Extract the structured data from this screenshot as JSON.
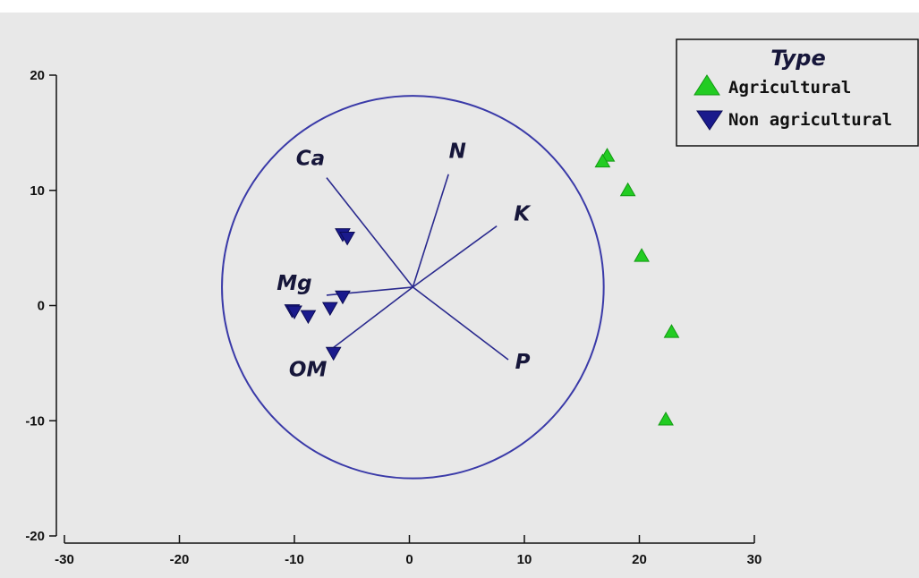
{
  "chart_data": {
    "type": "scatter",
    "title": "",
    "xlabel": "",
    "ylabel": "",
    "xlim": [
      -30,
      30
    ],
    "ylim": [
      -20,
      20
    ],
    "x_ticks": [
      -30,
      -20,
      -10,
      0,
      10,
      20,
      30
    ],
    "y_ticks": [
      -20,
      -10,
      0,
      10,
      20
    ],
    "x_tick_labels": [
      "-30",
      "-20",
      "-10",
      "0",
      "10",
      "20",
      "30"
    ],
    "y_tick_labels": [
      "-20",
      "-10",
      "0",
      "10",
      "20"
    ],
    "grid": false,
    "legend": {
      "title": "Type",
      "position": "top-right",
      "entries": [
        "Agricultural",
        "Non agricultural"
      ]
    },
    "series": [
      {
        "name": "Agricultural",
        "marker": "triangle-up",
        "color": "#22cc22",
        "points": [
          [
            17.2,
            13.0
          ],
          [
            16.8,
            12.5
          ],
          [
            19.0,
            10.0
          ],
          [
            20.2,
            4.3
          ],
          [
            22.8,
            -2.3
          ],
          [
            22.3,
            -9.9
          ]
        ]
      },
      {
        "name": "Non agricultural",
        "marker": "triangle-down",
        "color": "#1a1a8c",
        "points": [
          [
            -5.8,
            6.2
          ],
          [
            -5.4,
            5.9
          ],
          [
            -10.2,
            -0.4
          ],
          [
            -10.0,
            -0.5
          ],
          [
            -8.8,
            -0.9
          ],
          [
            -6.9,
            -0.2
          ],
          [
            -5.8,
            0.8
          ],
          [
            -6.6,
            -4.1
          ]
        ]
      }
    ],
    "vectors": {
      "origin": [
        0.3,
        1.6
      ],
      "items": [
        {
          "label": "Ca",
          "end": [
            -7.2,
            11.1
          ]
        },
        {
          "label": "N",
          "end": [
            3.4,
            11.4
          ]
        },
        {
          "label": "K",
          "end": [
            7.6,
            6.9
          ]
        },
        {
          "label": "Mg",
          "end": [
            -7.2,
            0.9
          ]
        },
        {
          "label": "OM",
          "end": [
            -6.8,
            -3.8
          ]
        },
        {
          "label": "P",
          "end": [
            8.6,
            -4.7
          ]
        }
      ]
    },
    "circle": {
      "center": [
        0.3,
        1.6
      ],
      "radius": 16.6
    },
    "colors": {
      "circle": "#3a3aa8",
      "vectors": "#2a2a8e",
      "background": "#e8e8e8",
      "axes": "#111111"
    }
  }
}
